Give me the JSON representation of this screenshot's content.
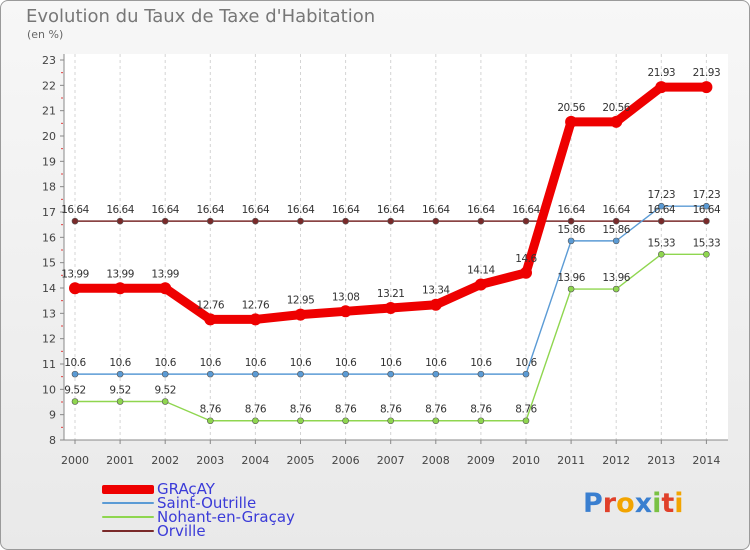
{
  "chart_data": {
    "type": "line",
    "title": "Evolution du Taux de Taxe d'Habitation",
    "ylabel": "(en %)",
    "xlabel": "",
    "x": [
      "2000",
      "2001",
      "2002",
      "2003",
      "2004",
      "2005",
      "2006",
      "2007",
      "2008",
      "2009",
      "2010",
      "2011",
      "2012",
      "2013",
      "2014"
    ],
    "ylim": [
      8,
      23
    ],
    "yticks": [
      8,
      9,
      10,
      11,
      12,
      13,
      14,
      15,
      16,
      17,
      18,
      19,
      20,
      21,
      22,
      23
    ],
    "grid": "vertical dashed",
    "legend_position": "bottom-left",
    "series": [
      {
        "name": "GRAçAY",
        "color": "#ee0000",
        "values": [
          13.99,
          13.99,
          13.99,
          12.76,
          12.76,
          12.95,
          13.08,
          13.21,
          13.34,
          14.14,
          14.6,
          20.56,
          20.56,
          21.93,
          21.93
        ],
        "labels": [
          "13.99",
          "13.99",
          "13.99",
          "12.76",
          "12.76",
          "12.95",
          "13.08",
          "13.21",
          "13.34",
          "14.14",
          "14.6",
          "20.56",
          "20.56",
          "21.93",
          "21.93"
        ]
      },
      {
        "name": "Saint-Outrille",
        "color": "#5b9bd5",
        "values": [
          10.6,
          10.6,
          10.6,
          10.6,
          10.6,
          10.6,
          10.6,
          10.6,
          10.6,
          10.6,
          10.6,
          15.86,
          15.86,
          17.23,
          17.23
        ],
        "labels": [
          "10.6",
          "10.6",
          "10.6",
          "10.6",
          "10.6",
          "10.6",
          "10.6",
          "10.6",
          "10.6",
          "10.6",
          "10.6",
          "15.86",
          "15.86",
          "17.23",
          "17.23"
        ]
      },
      {
        "name": "Nohant-en-Graçay",
        "color": "#8fd64f",
        "values": [
          9.52,
          9.52,
          9.52,
          8.76,
          8.76,
          8.76,
          8.76,
          8.76,
          8.76,
          8.76,
          8.76,
          13.96,
          13.96,
          15.33,
          15.33
        ],
        "labels": [
          "9.52",
          "9.52",
          "9.52",
          "8.76",
          "8.76",
          "8.76",
          "8.76",
          "8.76",
          "8.76",
          "8.76",
          "8.76",
          "13.96",
          "13.96",
          "15.33",
          "15.33"
        ]
      },
      {
        "name": "Orville",
        "color": "#7a2a2a",
        "values": [
          16.64,
          16.64,
          16.64,
          16.64,
          16.64,
          16.64,
          16.64,
          16.64,
          16.64,
          16.64,
          16.64,
          16.64,
          16.64,
          16.64,
          16.64
        ],
        "labels": [
          "16.64",
          "16.64",
          "16.64",
          "16.64",
          "16.64",
          "16.64",
          "16.64",
          "16.64",
          "16.64",
          "16.64",
          "16.64",
          "16.64",
          "16.64",
          "16.64",
          "16.64"
        ]
      }
    ]
  },
  "logo": {
    "text": "Proxiti",
    "colors": [
      "#3a7fd0",
      "#e0402a",
      "#f2a400",
      "#3a7fd0",
      "#7ac143",
      "#e0402a",
      "#f2a400"
    ]
  }
}
